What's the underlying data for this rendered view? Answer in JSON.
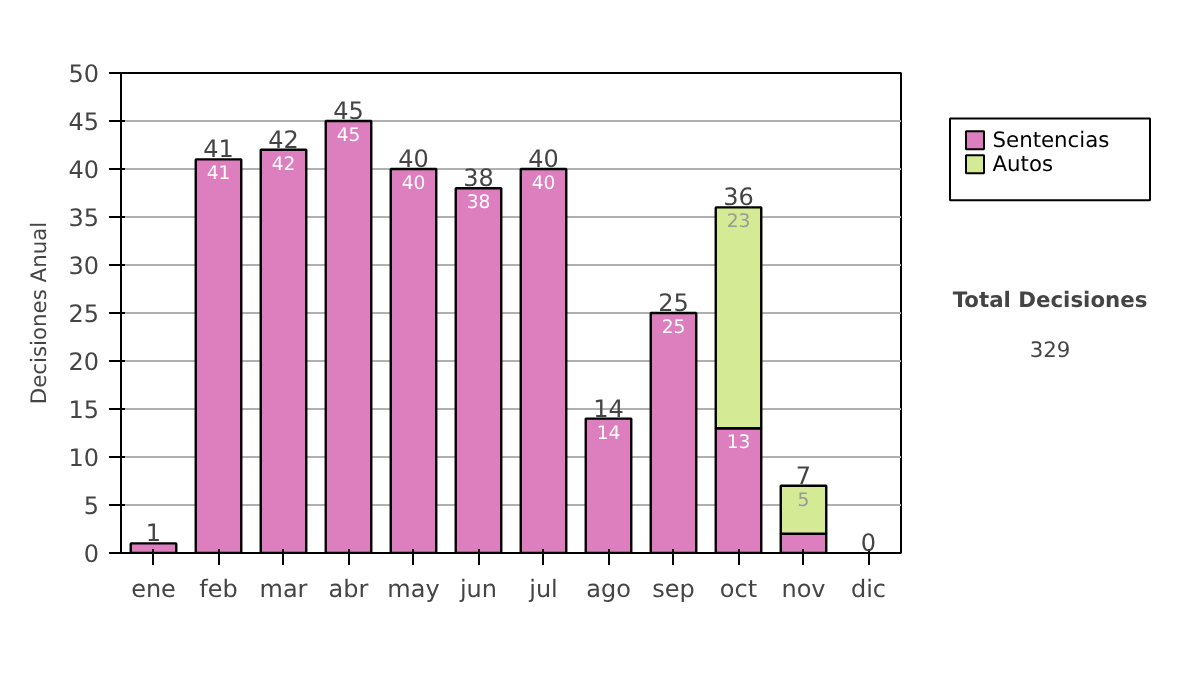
{
  "chart_data": {
    "type": "bar",
    "stacked": true,
    "ylabel": "Decisiones Anual",
    "categories": [
      "ene",
      "feb",
      "mar",
      "abr",
      "may",
      "jun",
      "jul",
      "ago",
      "sep",
      "oct",
      "nov",
      "dic"
    ],
    "series": [
      {
        "name": "Sentencias",
        "color": "#dd7fbf",
        "values": [
          1,
          41,
          42,
          45,
          40,
          38,
          40,
          14,
          25,
          13,
          2,
          0
        ],
        "value_labels": [
          null,
          "41",
          "42",
          "45",
          "40",
          "38",
          "40",
          "14",
          "25",
          "13",
          null,
          null
        ]
      },
      {
        "name": "Autos",
        "color": "#d4ea94",
        "values": [
          null,
          null,
          null,
          null,
          null,
          null,
          null,
          null,
          null,
          23,
          5,
          null
        ],
        "value_labels": [
          null,
          null,
          null,
          null,
          null,
          null,
          null,
          null,
          null,
          "23",
          "5",
          null
        ]
      }
    ],
    "totals": [
      "1",
      "41",
      "42",
      "45",
      "40",
      "38",
      "40",
      "14",
      "25",
      "36",
      "7",
      "0"
    ],
    "ylim": [
      0,
      50
    ],
    "yticks": [
      0,
      5,
      10,
      15,
      20,
      25,
      30,
      35,
      40,
      45,
      50
    ],
    "grid": "y",
    "legend": "right",
    "annotations": [
      "Total Decisiones",
      "329"
    ]
  }
}
